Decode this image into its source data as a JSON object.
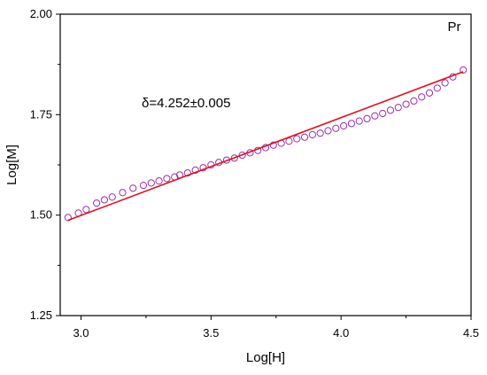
{
  "chart_data": {
    "type": "scatter",
    "title": "",
    "xlabel": "Log[H]",
    "ylabel": "Log[M]",
    "xlim": [
      2.92,
      4.5
    ],
    "ylim": [
      1.25,
      2.0
    ],
    "xticks": [
      3.0,
      3.5,
      4.0,
      4.5
    ],
    "xtick_labels": [
      "3.0",
      "3.5",
      "4.0",
      "4.5"
    ],
    "yticks": [
      1.25,
      1.5,
      1.75,
      2.0
    ],
    "ytick_labels": [
      "1.25",
      "1.50",
      "1.75",
      "2.00"
    ],
    "grid": false,
    "panel_label": "Pr",
    "annotation": "δ=4.252±0.005",
    "series": [
      {
        "marker": "open-circle",
        "color": "#9b2fae",
        "x": [
          2.95,
          2.99,
          3.02,
          3.06,
          3.09,
          3.12,
          3.16,
          3.2,
          3.24,
          3.27,
          3.3,
          3.33,
          3.36,
          3.38,
          3.41,
          3.44,
          3.47,
          3.5,
          3.53,
          3.56,
          3.59,
          3.62,
          3.65,
          3.68,
          3.71,
          3.74,
          3.77,
          3.8,
          3.83,
          3.86,
          3.89,
          3.92,
          3.95,
          3.98,
          4.01,
          4.04,
          4.07,
          4.1,
          4.13,
          4.16,
          4.19,
          4.22,
          4.25,
          4.28,
          4.31,
          4.34,
          4.37,
          4.4,
          4.43,
          4.47
        ],
        "y": [
          1.494,
          1.505,
          1.514,
          1.53,
          1.538,
          1.545,
          1.556,
          1.567,
          1.574,
          1.58,
          1.585,
          1.591,
          1.595,
          1.6,
          1.605,
          1.612,
          1.618,
          1.625,
          1.631,
          1.637,
          1.642,
          1.649,
          1.655,
          1.661,
          1.668,
          1.674,
          1.679,
          1.684,
          1.69,
          1.694,
          1.7,
          1.704,
          1.71,
          1.716,
          1.722,
          1.728,
          1.734,
          1.74,
          1.747,
          1.753,
          1.761,
          1.768,
          1.776,
          1.784,
          1.794,
          1.804,
          1.816,
          1.829,
          1.844,
          1.861
        ]
      },
      {
        "type": "line",
        "color": "#e0101e",
        "x": [
          2.95,
          4.47
        ],
        "y": [
          1.487,
          1.857
        ]
      }
    ]
  }
}
